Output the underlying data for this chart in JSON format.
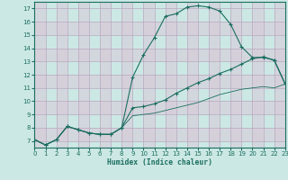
{
  "xlabel": "Humidex (Indice chaleur)",
  "bg_color": "#cce8e4",
  "plot_bg": "#cce8e4",
  "grid_color_major": "#c8b8c8",
  "line_color": "#1a6e60",
  "xlim": [
    0,
    23
  ],
  "ylim": [
    6.5,
    17.5
  ],
  "xticks": [
    0,
    1,
    2,
    3,
    4,
    5,
    6,
    7,
    8,
    9,
    10,
    11,
    12,
    13,
    14,
    15,
    16,
    17,
    18,
    19,
    20,
    21,
    22,
    23
  ],
  "yticks": [
    7,
    8,
    9,
    10,
    11,
    12,
    13,
    14,
    15,
    16,
    17
  ],
  "line1_x": [
    0,
    1,
    2,
    3,
    4,
    5,
    6,
    7,
    8,
    9,
    10,
    11,
    12,
    13,
    14,
    15,
    16,
    17,
    18,
    19,
    20,
    21,
    22,
    23
  ],
  "line1_y": [
    7.1,
    6.7,
    7.1,
    8.1,
    7.85,
    7.6,
    7.5,
    7.5,
    8.0,
    11.8,
    13.5,
    14.8,
    16.4,
    16.6,
    17.1,
    17.2,
    17.1,
    16.8,
    15.8,
    14.1,
    13.3,
    13.3,
    13.1,
    11.3
  ],
  "line2_x": [
    0,
    1,
    2,
    3,
    4,
    5,
    6,
    7,
    8,
    9,
    10,
    11,
    12,
    13,
    14,
    15,
    16,
    17,
    18,
    19,
    20,
    21,
    22,
    23
  ],
  "line2_y": [
    7.1,
    6.7,
    7.1,
    8.1,
    7.85,
    7.6,
    7.5,
    7.5,
    8.0,
    9.5,
    9.6,
    9.8,
    10.1,
    10.6,
    11.0,
    11.4,
    11.7,
    12.1,
    12.4,
    12.8,
    13.2,
    13.35,
    13.1,
    11.3
  ],
  "line3_x": [
    0,
    1,
    2,
    3,
    4,
    5,
    6,
    7,
    8,
    9,
    10,
    11,
    12,
    13,
    14,
    15,
    16,
    17,
    18,
    19,
    20,
    21,
    22,
    23
  ],
  "line3_y": [
    7.1,
    6.7,
    7.1,
    8.1,
    7.85,
    7.6,
    7.5,
    7.5,
    8.0,
    8.9,
    9.0,
    9.1,
    9.3,
    9.5,
    9.7,
    9.9,
    10.2,
    10.5,
    10.7,
    10.9,
    11.0,
    11.1,
    11.0,
    11.3
  ]
}
